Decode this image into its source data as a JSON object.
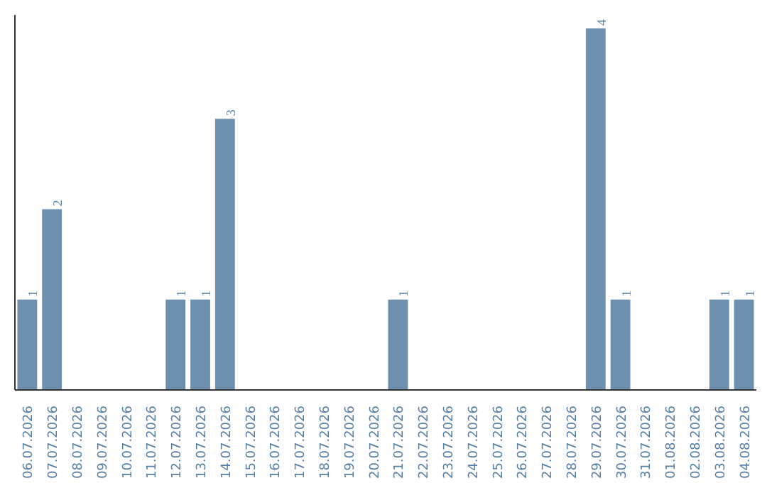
{
  "chart_data": {
    "type": "bar",
    "categories": [
      "06.07.2026",
      "07.07.2026",
      "08.07.2026",
      "09.07.2026",
      "10.07.2026",
      "11.07.2026",
      "12.07.2026",
      "13.07.2026",
      "14.07.2026",
      "15.07.2026",
      "16.07.2026",
      "17.07.2026",
      "18.07.2026",
      "19.07.2026",
      "20.07.2026",
      "21.07.2026",
      "22.07.2026",
      "23.07.2026",
      "24.07.2026",
      "25.07.2026",
      "26.07.2026",
      "27.07.2026",
      "28.07.2026",
      "29.07.2026",
      "30.07.2026",
      "31.07.2026",
      "01.08.2026",
      "02.08.2026",
      "03.08.2026",
      "04.08.2026"
    ],
    "values": [
      1,
      2,
      0,
      0,
      0,
      0,
      1,
      1,
      3,
      0,
      0,
      0,
      0,
      0,
      0,
      1,
      0,
      0,
      0,
      0,
      0,
      0,
      0,
      4,
      1,
      0,
      0,
      0,
      1,
      1
    ],
    "value_labels": [
      "1",
      "2",
      null,
      null,
      null,
      null,
      "1",
      "1",
      "3",
      null,
      null,
      null,
      null,
      null,
      null,
      "1",
      null,
      null,
      null,
      null,
      null,
      null,
      null,
      "4",
      "1",
      null,
      null,
      null,
      "1",
      "1"
    ],
    "color": "#6f8fae",
    "ylim": [
      0,
      4.15
    ],
    "tick_labels": "x"
  }
}
